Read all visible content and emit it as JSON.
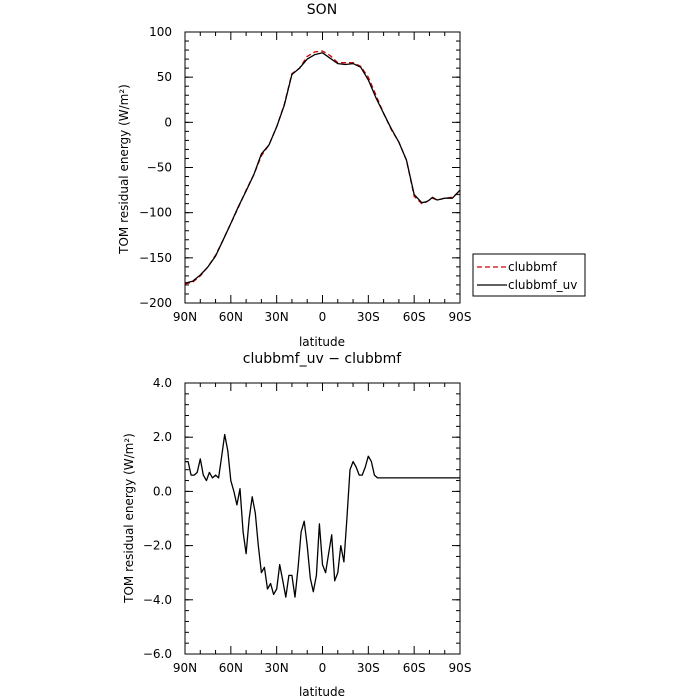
{
  "chart_data": [
    {
      "type": "line",
      "title": "SON",
      "xlabel": "latitude",
      "ylabel": "TOM residual energy (W/m²)",
      "x": [
        90,
        85,
        80,
        75,
        70,
        65,
        60,
        55,
        50,
        45,
        40,
        35,
        30,
        25,
        20,
        15,
        10,
        5,
        0,
        -5,
        -10,
        -15,
        -20,
        -25,
        -30,
        -35,
        -40,
        -45,
        -50,
        -55,
        -60,
        -65,
        -68,
        -70,
        -72,
        -75,
        -80,
        -85,
        -90
      ],
      "x_tick_values": [
        90,
        60,
        30,
        0,
        -30,
        -60,
        -90
      ],
      "x_tick_labels": [
        "90N",
        "60N",
        "30N",
        "0",
        "30S",
        "60S",
        "90S"
      ],
      "xlim": [
        90,
        -90
      ],
      "ylim": [
        -200,
        100
      ],
      "y_tick_values": [
        -200,
        -150,
        -100,
        -50,
        0,
        50,
        100
      ],
      "y_tick_labels": [
        "−200",
        "−150",
        "−100",
        "−50",
        "0",
        "50",
        "100"
      ],
      "series": [
        {
          "name": "clubbmf",
          "color": "#cc0000",
          "dash": "dashed",
          "values": [
            -179,
            -177,
            -170,
            -160,
            -147,
            -130,
            -112,
            -94,
            -75,
            -58,
            -37,
            -25,
            -5,
            20,
            54,
            60,
            73,
            78,
            79,
            74,
            66,
            66,
            66,
            62,
            50,
            30,
            10,
            -8,
            -22,
            -42,
            -82,
            -90,
            -88,
            -86,
            -84,
            -86,
            -84,
            -83,
            -76
          ]
        },
        {
          "name": "clubbmf_uv",
          "color": "#000000",
          "dash": "solid",
          "values": [
            -178,
            -176,
            -169,
            -160,
            -148,
            -130,
            -112,
            -93,
            -76,
            -58,
            -35,
            -25,
            -5,
            19,
            53,
            60,
            70,
            75,
            77,
            71,
            65,
            64,
            65,
            61,
            47,
            27,
            10,
            -7,
            -22,
            -42,
            -80,
            -89,
            -88,
            -86,
            -83,
            -86,
            -84,
            -84,
            -75
          ]
        }
      ],
      "legend": "outside-right"
    },
    {
      "type": "line",
      "title": "clubbmf_uv − clubbmf",
      "xlabel": "latitude",
      "ylabel": "TOM residual energy (W/m²)",
      "x": [
        90,
        88,
        86,
        84,
        82,
        80,
        78,
        76,
        74,
        72,
        70,
        68,
        66,
        64,
        62,
        60,
        58,
        56,
        54,
        52,
        50,
        48,
        46,
        44,
        42,
        40,
        38,
        36,
        34,
        32,
        30,
        28,
        26,
        24,
        22,
        20,
        18,
        16,
        14,
        12,
        10,
        8,
        6,
        4,
        2,
        0,
        -2,
        -4,
        -6,
        -8,
        -10,
        -12,
        -14,
        -16,
        -18,
        -20,
        -22,
        -24,
        -26,
        -28,
        -30,
        -32,
        -34,
        -36,
        -38,
        -40,
        -42,
        -44,
        -46,
        -48,
        -50,
        -52,
        -54,
        -56,
        -58,
        -60,
        -62,
        -64,
        -66,
        -68,
        -70,
        -72,
        -74,
        -76,
        -78,
        -80,
        -82,
        -84,
        -86,
        -88,
        -90
      ],
      "x_tick_values": [
        90,
        60,
        30,
        0,
        -30,
        -60,
        -90
      ],
      "x_tick_labels": [
        "90N",
        "60N",
        "30N",
        "0",
        "30S",
        "60S",
        "90S"
      ],
      "xlim": [
        90,
        -90
      ],
      "ylim": [
        -6.0,
        4.0
      ],
      "y_tick_values": [
        -6,
        -4,
        -2,
        0,
        2,
        4
      ],
      "y_tick_labels": [
        "−6.0",
        "−4.0",
        "−2.0",
        "0.0",
        "2.0",
        "4.0"
      ],
      "series": [
        {
          "name": "clubbmf_uv − clubbmf",
          "color": "#000000",
          "dash": "solid",
          "values": [
            1.1,
            1.1,
            0.6,
            0.6,
            0.7,
            1.2,
            0.6,
            0.4,
            0.7,
            0.5,
            0.6,
            0.5,
            1.3,
            2.1,
            1.5,
            0.4,
            0.0,
            -0.5,
            0.1,
            -1.5,
            -2.3,
            -1.0,
            -0.2,
            -0.8,
            -2.0,
            -3.0,
            -2.8,
            -3.6,
            -3.4,
            -3.8,
            -3.6,
            -2.7,
            -3.3,
            -3.9,
            -3.1,
            -3.1,
            -3.9,
            -2.8,
            -1.5,
            -1.1,
            -2.0,
            -3.2,
            -3.7,
            -3.1,
            -1.2,
            -2.7,
            -3.0,
            -2.3,
            -1.6,
            -3.3,
            -3.0,
            -2.0,
            -2.6,
            -1.0,
            0.8,
            1.1,
            0.9,
            0.6,
            0.6,
            0.9,
            1.3,
            1.1,
            0.6,
            0.5,
            0.5,
            0.5,
            0.5,
            0.5,
            0.5,
            0.5,
            0.5,
            0.5,
            0.5,
            0.5,
            0.5,
            0.5,
            0.5,
            0.5,
            0.5,
            0.5,
            0.5,
            0.5,
            0.5,
            0.5,
            0.5,
            0.5,
            0.5,
            0.5,
            0.5,
            0.5,
            0.5
          ]
        }
      ],
      "legend": "none"
    }
  ]
}
